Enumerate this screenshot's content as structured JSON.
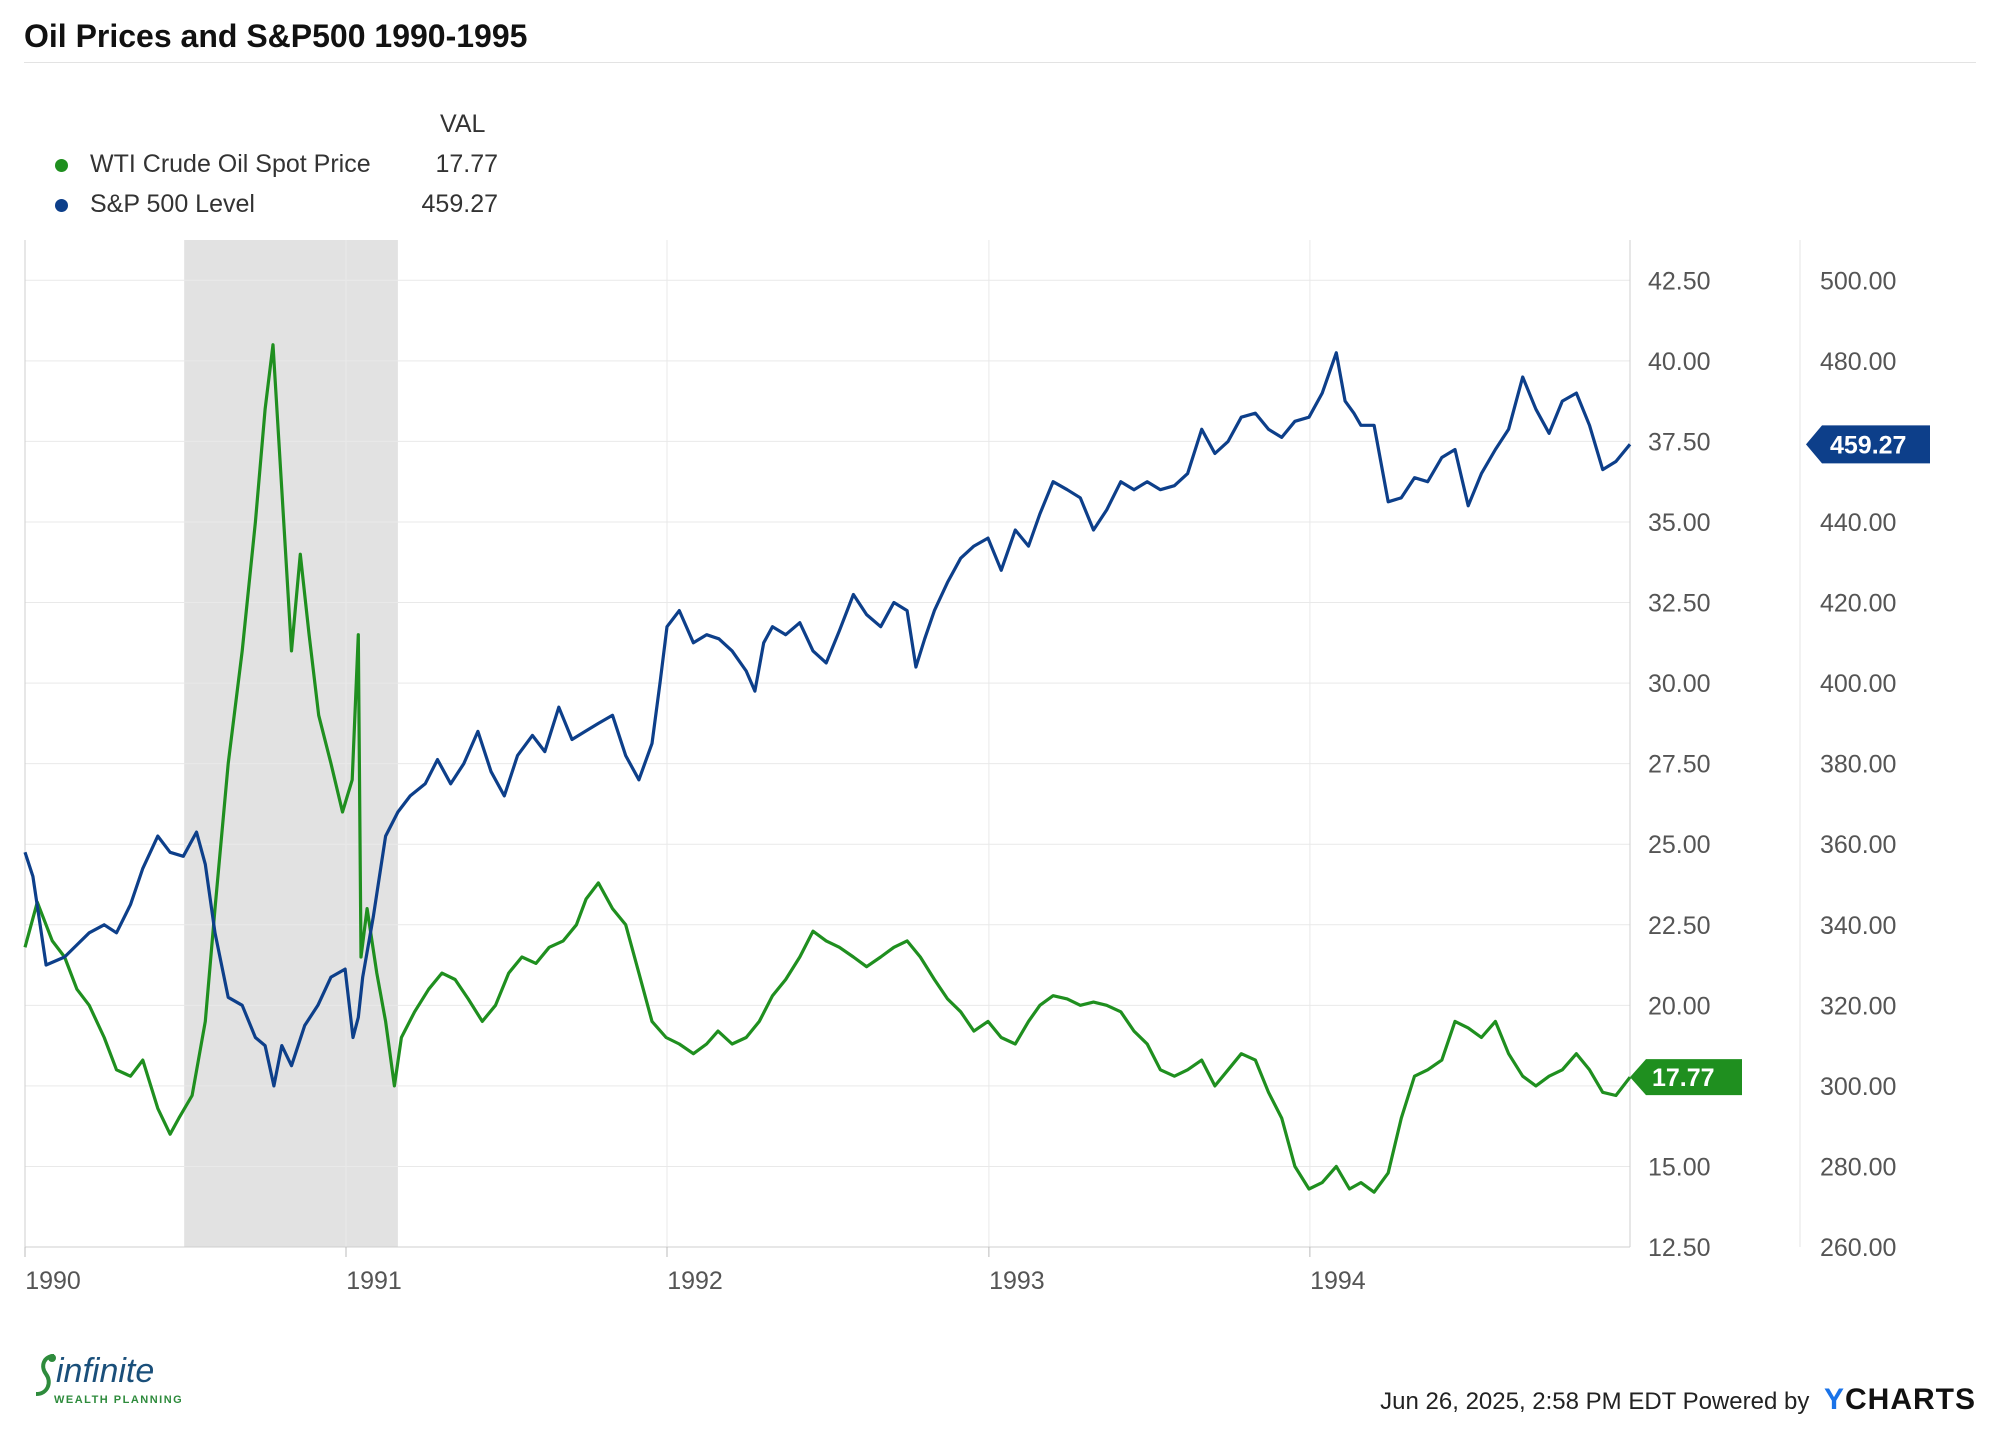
{
  "title": "Oil Prices and S&P500 1990-1995",
  "legend": {
    "header": "VAL",
    "items": [
      {
        "name": "WTI Crude Oil Spot Price",
        "value": "17.77",
        "color": "#1f8f1f"
      },
      {
        "name": "S&P 500 Level",
        "value": "459.27",
        "color": "#0d3f8a"
      }
    ]
  },
  "footer": {
    "timestamp": "Jun 26, 2025, 2:58 PM EDT Powered by",
    "brand_y": "Y",
    "brand_rest": "CHARTS"
  },
  "logo": {
    "word": "infinite",
    "sub": "WEALTH PLANNING"
  },
  "chart_data": {
    "type": "line",
    "x_range": [
      "1990-01-01",
      "1994-12-31"
    ],
    "x_tick_labels": [
      "1990",
      "1991",
      "1992",
      "1993",
      "1994"
    ],
    "left_axis": {
      "ticks": [
        "12.50",
        "15.00",
        "17.50",
        "20.00",
        "22.50",
        "25.00",
        "27.50",
        "30.00",
        "32.50",
        "35.00",
        "37.50",
        "40.00",
        "42.50"
      ],
      "range": [
        12.5,
        43.75
      ]
    },
    "right_axis": {
      "ticks": [
        "260.00",
        "280.00",
        "300.00",
        "320.00",
        "340.00",
        "360.00",
        "380.00",
        "400.00",
        "420.00",
        "440.00",
        "460.00",
        "480.00",
        "500.00"
      ],
      "range": [
        260,
        510
      ]
    },
    "recession_shade": [
      "1990-07-01",
      "1991-03-01"
    ],
    "grid": true,
    "series": [
      {
        "name": "WTI Crude Oil Spot Price",
        "axis": "left",
        "color": "#1f8f1f",
        "last_value_label": "17.77",
        "points": [
          [
            "1990-01-01",
            21.8
          ],
          [
            "1990-01-15",
            23.2
          ],
          [
            "1990-02-01",
            22.0
          ],
          [
            "1990-02-15",
            21.5
          ],
          [
            "1990-03-01",
            20.5
          ],
          [
            "1990-03-15",
            20.0
          ],
          [
            "1990-04-01",
            19.0
          ],
          [
            "1990-04-15",
            18.0
          ],
          [
            "1990-05-01",
            17.8
          ],
          [
            "1990-05-15",
            18.3
          ],
          [
            "1990-06-01",
            16.8
          ],
          [
            "1990-06-15",
            16.0
          ],
          [
            "1990-06-25",
            16.5
          ],
          [
            "1990-07-10",
            17.2
          ],
          [
            "1990-07-25",
            19.5
          ],
          [
            "1990-08-05",
            23.0
          ],
          [
            "1990-08-20",
            27.5
          ],
          [
            "1990-09-05",
            31.0
          ],
          [
            "1990-09-20",
            35.0
          ],
          [
            "1990-10-01",
            38.5
          ],
          [
            "1990-10-10",
            40.5
          ],
          [
            "1990-10-20",
            36.0
          ],
          [
            "1990-10-31",
            31.0
          ],
          [
            "1990-11-10",
            34.0
          ],
          [
            "1990-11-20",
            31.5
          ],
          [
            "1990-12-01",
            29.0
          ],
          [
            "1990-12-15",
            27.5
          ],
          [
            "1990-12-28",
            26.0
          ],
          [
            "1991-01-08",
            27.0
          ],
          [
            "1991-01-15",
            31.5
          ],
          [
            "1991-01-18",
            21.5
          ],
          [
            "1991-01-25",
            23.0
          ],
          [
            "1991-02-05",
            21.0
          ],
          [
            "1991-02-15",
            19.5
          ],
          [
            "1991-02-25",
            17.5
          ],
          [
            "1991-03-05",
            19.0
          ],
          [
            "1991-03-20",
            19.8
          ],
          [
            "1991-04-05",
            20.5
          ],
          [
            "1991-04-20",
            21.0
          ],
          [
            "1991-05-05",
            20.8
          ],
          [
            "1991-05-20",
            20.2
          ],
          [
            "1991-06-05",
            19.5
          ],
          [
            "1991-06-20",
            20.0
          ],
          [
            "1991-07-05",
            21.0
          ],
          [
            "1991-07-20",
            21.5
          ],
          [
            "1991-08-05",
            21.3
          ],
          [
            "1991-08-20",
            21.8
          ],
          [
            "1991-09-05",
            22.0
          ],
          [
            "1991-09-20",
            22.5
          ],
          [
            "1991-10-01",
            23.3
          ],
          [
            "1991-10-15",
            23.8
          ],
          [
            "1991-10-31",
            23.0
          ],
          [
            "1991-11-15",
            22.5
          ],
          [
            "1991-11-30",
            21.0
          ],
          [
            "1991-12-15",
            19.5
          ],
          [
            "1991-12-31",
            19.0
          ],
          [
            "1992-01-15",
            18.8
          ],
          [
            "1992-01-31",
            18.5
          ],
          [
            "1992-02-15",
            18.8
          ],
          [
            "1992-02-28",
            19.2
          ],
          [
            "1992-03-15",
            18.8
          ],
          [
            "1992-03-31",
            19.0
          ],
          [
            "1992-04-15",
            19.5
          ],
          [
            "1992-04-30",
            20.3
          ],
          [
            "1992-05-15",
            20.8
          ],
          [
            "1992-05-31",
            21.5
          ],
          [
            "1992-06-15",
            22.3
          ],
          [
            "1992-06-30",
            22.0
          ],
          [
            "1992-07-15",
            21.8
          ],
          [
            "1992-07-31",
            21.5
          ],
          [
            "1992-08-15",
            21.2
          ],
          [
            "1992-08-31",
            21.5
          ],
          [
            "1992-09-15",
            21.8
          ],
          [
            "1992-09-30",
            22.0
          ],
          [
            "1992-10-15",
            21.5
          ],
          [
            "1992-10-31",
            20.8
          ],
          [
            "1992-11-15",
            20.2
          ],
          [
            "1992-11-30",
            19.8
          ],
          [
            "1992-12-15",
            19.2
          ],
          [
            "1992-12-31",
            19.5
          ],
          [
            "1993-01-15",
            19.0
          ],
          [
            "1993-01-31",
            18.8
          ],
          [
            "1993-02-15",
            19.5
          ],
          [
            "1993-02-28",
            20.0
          ],
          [
            "1993-03-15",
            20.3
          ],
          [
            "1993-03-31",
            20.2
          ],
          [
            "1993-04-15",
            20.0
          ],
          [
            "1993-04-30",
            20.1
          ],
          [
            "1993-05-15",
            20.0
          ],
          [
            "1993-05-31",
            19.8
          ],
          [
            "1993-06-15",
            19.2
          ],
          [
            "1993-06-30",
            18.8
          ],
          [
            "1993-07-15",
            18.0
          ],
          [
            "1993-07-31",
            17.8
          ],
          [
            "1993-08-15",
            18.0
          ],
          [
            "1993-08-31",
            18.3
          ],
          [
            "1993-09-15",
            17.5
          ],
          [
            "1993-09-30",
            18.0
          ],
          [
            "1993-10-15",
            18.5
          ],
          [
            "1993-10-31",
            18.3
          ],
          [
            "1993-11-15",
            17.3
          ],
          [
            "1993-11-30",
            16.5
          ],
          [
            "1993-12-15",
            15.0
          ],
          [
            "1993-12-31",
            14.3
          ],
          [
            "1994-01-15",
            14.5
          ],
          [
            "1994-01-31",
            15.0
          ],
          [
            "1994-02-15",
            14.3
          ],
          [
            "1994-02-28",
            14.5
          ],
          [
            "1994-03-15",
            14.2
          ],
          [
            "1994-03-31",
            14.8
          ],
          [
            "1994-04-15",
            16.5
          ],
          [
            "1994-04-30",
            17.8
          ],
          [
            "1994-05-15",
            18.0
          ],
          [
            "1994-05-31",
            18.3
          ],
          [
            "1994-06-15",
            19.5
          ],
          [
            "1994-06-30",
            19.3
          ],
          [
            "1994-07-15",
            19.0
          ],
          [
            "1994-07-31",
            19.5
          ],
          [
            "1994-08-15",
            18.5
          ],
          [
            "1994-08-31",
            17.8
          ],
          [
            "1994-09-15",
            17.5
          ],
          [
            "1994-09-30",
            17.8
          ],
          [
            "1994-10-15",
            18.0
          ],
          [
            "1994-10-31",
            18.5
          ],
          [
            "1994-11-15",
            18.0
          ],
          [
            "1994-11-30",
            17.3
          ],
          [
            "1994-12-15",
            17.2
          ],
          [
            "1994-12-31",
            17.77
          ]
        ]
      },
      {
        "name": "S&P 500 Level",
        "axis": "right",
        "color": "#0d3f8a",
        "last_value_label": "459.27",
        "points": [
          [
            "1990-01-01",
            358
          ],
          [
            "1990-01-10",
            352
          ],
          [
            "1990-01-25",
            330
          ],
          [
            "1990-02-15",
            332
          ],
          [
            "1990-03-01",
            335
          ],
          [
            "1990-03-15",
            338
          ],
          [
            "1990-04-01",
            340
          ],
          [
            "1990-04-15",
            338
          ],
          [
            "1990-05-01",
            345
          ],
          [
            "1990-05-15",
            354
          ],
          [
            "1990-06-01",
            362
          ],
          [
            "1990-06-15",
            358
          ],
          [
            "1990-06-30",
            357
          ],
          [
            "1990-07-15",
            363
          ],
          [
            "1990-07-25",
            355
          ],
          [
            "1990-08-05",
            338
          ],
          [
            "1990-08-20",
            322
          ],
          [
            "1990-09-05",
            320
          ],
          [
            "1990-09-20",
            312
          ],
          [
            "1990-10-01",
            310
          ],
          [
            "1990-10-11",
            300
          ],
          [
            "1990-10-20",
            310
          ],
          [
            "1990-10-31",
            305
          ],
          [
            "1990-11-15",
            315
          ],
          [
            "1990-11-30",
            320
          ],
          [
            "1990-12-15",
            327
          ],
          [
            "1990-12-31",
            329
          ],
          [
            "1991-01-09",
            312
          ],
          [
            "1991-01-15",
            317
          ],
          [
            "1991-01-20",
            327
          ],
          [
            "1991-02-01",
            342
          ],
          [
            "1991-02-15",
            362
          ],
          [
            "1991-03-01",
            368
          ],
          [
            "1991-03-15",
            372
          ],
          [
            "1991-04-01",
            375
          ],
          [
            "1991-04-15",
            381
          ],
          [
            "1991-04-30",
            375
          ],
          [
            "1991-05-15",
            380
          ],
          [
            "1991-05-31",
            388
          ],
          [
            "1991-06-15",
            378
          ],
          [
            "1991-06-30",
            372
          ],
          [
            "1991-07-15",
            382
          ],
          [
            "1991-08-01",
            387
          ],
          [
            "1991-08-15",
            383
          ],
          [
            "1991-08-31",
            394
          ],
          [
            "1991-09-15",
            386
          ],
          [
            "1991-09-30",
            388
          ],
          [
            "1991-10-15",
            390
          ],
          [
            "1991-10-31",
            392
          ],
          [
            "1991-11-15",
            382
          ],
          [
            "1991-11-30",
            376
          ],
          [
            "1991-12-15",
            385
          ],
          [
            "1991-12-24",
            400
          ],
          [
            "1992-01-01",
            414
          ],
          [
            "1992-01-15",
            418
          ],
          [
            "1992-01-31",
            410
          ],
          [
            "1992-02-15",
            412
          ],
          [
            "1992-02-29",
            411
          ],
          [
            "1992-03-15",
            408
          ],
          [
            "1992-03-31",
            403
          ],
          [
            "1992-04-10",
            398
          ],
          [
            "1992-04-20",
            410
          ],
          [
            "1992-04-30",
            414
          ],
          [
            "1992-05-15",
            412
          ],
          [
            "1992-05-31",
            415
          ],
          [
            "1992-06-15",
            408
          ],
          [
            "1992-06-30",
            405
          ],
          [
            "1992-07-15",
            413
          ],
          [
            "1992-07-31",
            422
          ],
          [
            "1992-08-15",
            417
          ],
          [
            "1992-08-31",
            414
          ],
          [
            "1992-09-15",
            420
          ],
          [
            "1992-09-30",
            418
          ],
          [
            "1992-10-10",
            404
          ],
          [
            "1992-10-20",
            411
          ],
          [
            "1992-10-31",
            418
          ],
          [
            "1992-11-15",
            425
          ],
          [
            "1992-11-30",
            431
          ],
          [
            "1992-12-15",
            434
          ],
          [
            "1992-12-31",
            436
          ],
          [
            "1993-01-15",
            428
          ],
          [
            "1993-01-31",
            438
          ],
          [
            "1993-02-15",
            434
          ],
          [
            "1993-02-28",
            442
          ],
          [
            "1993-03-15",
            450
          ],
          [
            "1993-03-31",
            448
          ],
          [
            "1993-04-15",
            446
          ],
          [
            "1993-04-30",
            438
          ],
          [
            "1993-05-15",
            443
          ],
          [
            "1993-05-31",
            450
          ],
          [
            "1993-06-15",
            448
          ],
          [
            "1993-06-30",
            450
          ],
          [
            "1993-07-15",
            448
          ],
          [
            "1993-07-31",
            449
          ],
          [
            "1993-08-15",
            452
          ],
          [
            "1993-08-31",
            463
          ],
          [
            "1993-09-15",
            457
          ],
          [
            "1993-09-30",
            460
          ],
          [
            "1993-10-15",
            466
          ],
          [
            "1993-10-31",
            467
          ],
          [
            "1993-11-15",
            463
          ],
          [
            "1993-11-30",
            461
          ],
          [
            "1993-12-15",
            465
          ],
          [
            "1993-12-31",
            466
          ],
          [
            "1994-01-15",
            472
          ],
          [
            "1994-01-31",
            482
          ],
          [
            "1994-02-10",
            470
          ],
          [
            "1994-02-20",
            467
          ],
          [
            "1994-02-28",
            464
          ],
          [
            "1994-03-15",
            464
          ],
          [
            "1994-03-31",
            445
          ],
          [
            "1994-04-15",
            446
          ],
          [
            "1994-04-30",
            451
          ],
          [
            "1994-05-15",
            450
          ],
          [
            "1994-05-31",
            456
          ],
          [
            "1994-06-15",
            458
          ],
          [
            "1994-06-30",
            444
          ],
          [
            "1994-07-15",
            452
          ],
          [
            "1994-07-31",
            458
          ],
          [
            "1994-08-15",
            463
          ],
          [
            "1994-08-31",
            476
          ],
          [
            "1994-09-15",
            468
          ],
          [
            "1994-09-30",
            462
          ],
          [
            "1994-10-15",
            470
          ],
          [
            "1994-10-31",
            472
          ],
          [
            "1994-11-15",
            464
          ],
          [
            "1994-11-30",
            453
          ],
          [
            "1994-12-15",
            455
          ],
          [
            "1994-12-31",
            459.27
          ]
        ]
      }
    ]
  }
}
